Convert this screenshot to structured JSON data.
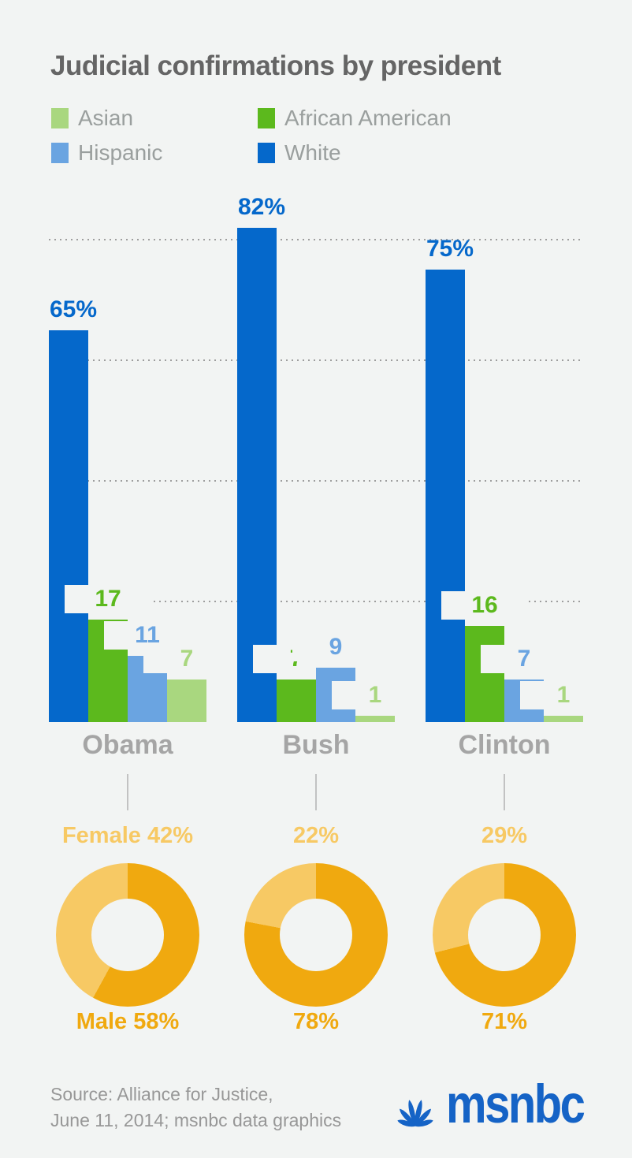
{
  "title": "Judicial confirmations by president",
  "colors": {
    "background": "#f2f4f3",
    "asian": "#a9d77f",
    "african_american": "#5cb91d",
    "hispanic": "#6aa4e1",
    "white": "#0568cb",
    "female_light": "#f7c964",
    "male_dark": "#f0a90f",
    "gridline": "#9e9e9e",
    "title_text": "#656565",
    "legend_text": "#9a9f9e",
    "president_text": "#a5a5a5",
    "connector": "#c2c2c2",
    "source_text": "#979797",
    "msnbc_blue": "#1563c6"
  },
  "legend": {
    "items": [
      {
        "label": "Asian",
        "color_key": "asian"
      },
      {
        "label": "African American",
        "color_key": "african_american"
      },
      {
        "label": "Hispanic",
        "color_key": "hispanic"
      },
      {
        "label": "White",
        "color_key": "white"
      }
    ]
  },
  "chart_data": [
    {
      "type": "bar",
      "title": "Judicial confirmations by president",
      "categories": [
        "Obama",
        "Bush",
        "Clinton"
      ],
      "series": [
        {
          "name": "White",
          "color_key": "white",
          "values": [
            65,
            82,
            75
          ],
          "label_format": "percent"
        },
        {
          "name": "African American",
          "color_key": "african_american",
          "values": [
            17,
            7,
            16
          ],
          "label_format": "number"
        },
        {
          "name": "Hispanic",
          "color_key": "hispanic",
          "values": [
            11,
            9,
            7
          ],
          "label_format": "number"
        },
        {
          "name": "Asian",
          "color_key": "asian",
          "values": [
            7,
            1,
            1
          ],
          "label_format": "number"
        }
      ],
      "ylim": [
        0,
        100
      ],
      "gridline_values": [
        20,
        40,
        60,
        80
      ],
      "grid": "dotted horizontal",
      "legend_position": "top",
      "bar_value_labels": {
        "Obama": "65%, 17, 11, 7",
        "Bush": "82%, 7, 9, 1",
        "Clinton": "75%, 16, 7, 1"
      }
    },
    {
      "type": "pie",
      "subtype": "donut",
      "categories": [
        "Obama",
        "Bush",
        "Clinton"
      ],
      "series": [
        {
          "name": "Male",
          "color_key": "male_dark",
          "values": [
            58,
            78,
            71
          ]
        },
        {
          "name": "Female",
          "color_key": "female_light",
          "values": [
            42,
            22,
            29
          ]
        }
      ],
      "labels_top": [
        "Female 42%",
        "22%",
        "29%"
      ],
      "labels_bottom": [
        "Male 58%",
        "78%",
        "71%"
      ]
    }
  ],
  "footer": {
    "source_line1": "Source: Alliance for Justice,",
    "source_line2": "June 11, 2014; msnbc data graphics",
    "logo_text": "msnbc"
  }
}
